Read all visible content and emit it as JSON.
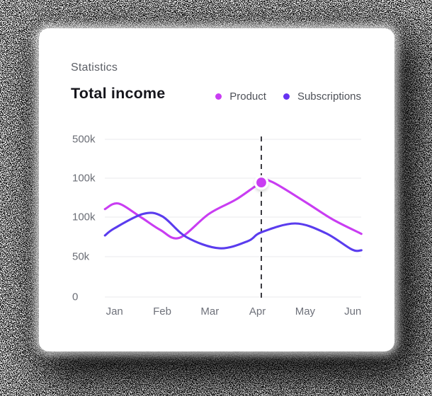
{
  "header": {
    "eyebrow": "Statistics",
    "title": "Total income"
  },
  "legend": {
    "items": [
      {
        "label": "Product",
        "color": "#c93df2"
      },
      {
        "label": "Subscriptions",
        "color": "#6633f2"
      }
    ]
  },
  "chart_data": {
    "type": "line",
    "title": "Total income",
    "categories": [
      "Jan",
      "Feb",
      "Mar",
      "Apr",
      "May",
      "Jun"
    ],
    "y_tick_labels": [
      "500k",
      "100k",
      "100k",
      "50k",
      "0"
    ],
    "grid": "horizontal gridlines on, vertical off",
    "legend_position": "top-right",
    "series": [
      {
        "name": "Product",
        "color": "#c93df2",
        "values_k": [
          115,
          84,
          104,
          142,
          119,
          83
        ],
        "shape_samples": [
          [
            -0.2,
            110
          ],
          [
            0.08,
            117
          ],
          [
            0.55,
            100
          ],
          [
            0.96,
            84
          ],
          [
            1.36,
            74
          ],
          [
            1.98,
            104
          ],
          [
            2.55,
            122
          ],
          [
            3.08,
            143.3
          ],
          [
            3.3,
            144.2
          ],
          [
            4.0,
            119
          ],
          [
            4.58,
            97
          ],
          [
            5.18,
            79
          ]
        ]
      },
      {
        "name": "Subscriptions",
        "color": "#5a3cee",
        "values_k": [
          86,
          101,
          62,
          75,
          91,
          59
        ],
        "shape_samples": [
          [
            -0.2,
            77
          ],
          [
            0.0,
            86
          ],
          [
            0.6,
            104
          ],
          [
            1.0,
            101
          ],
          [
            1.51,
            75
          ],
          [
            2.2,
            61
          ],
          [
            2.8,
            70
          ],
          [
            3.08,
            81
          ],
          [
            3.79,
            92
          ],
          [
            4.43,
            80
          ],
          [
            4.98,
            59.5
          ],
          [
            5.18,
            58.5
          ]
        ]
      }
    ],
    "highlight": {
      "series": "Product",
      "month_t": 3.08,
      "value_k": 143.3,
      "marker_color": "#c93df2",
      "dash_color": "#1b1b22"
    },
    "axis_text_color": "#6b6e76",
    "gridline_color": "#e9e9ed"
  }
}
